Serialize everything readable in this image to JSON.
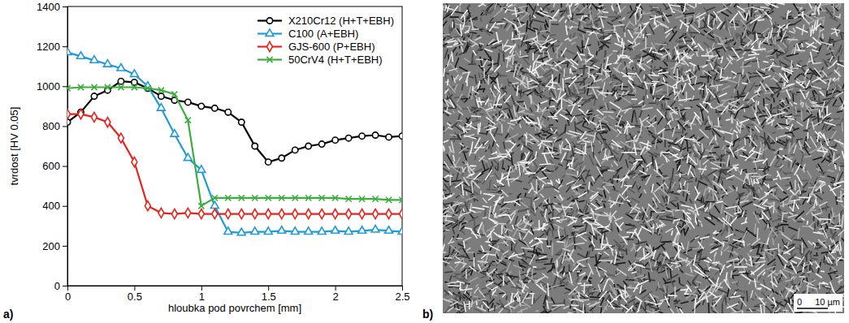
{
  "chart_data": {
    "type": "line",
    "x_label": "hloubka pod povrchem [mm]",
    "y_label": "tvrdost [HV 0.05]",
    "x": [
      0,
      0.1,
      0.2,
      0.3,
      0.4,
      0.5,
      0.6,
      0.7,
      0.8,
      0.9,
      1.0,
      1.1,
      1.2,
      1.3,
      1.4,
      1.5,
      1.6,
      1.7,
      1.8,
      1.9,
      2.0,
      2.1,
      2.2,
      2.3,
      2.4,
      2.5
    ],
    "series": [
      {
        "name": "X210Cr12 (H+T+EBH)",
        "color": "#000000",
        "marker": "circle",
        "line_style": "solid",
        "values": [
          820,
          870,
          950,
          980,
          1025,
          1020,
          990,
          950,
          930,
          920,
          900,
          890,
          870,
          820,
          700,
          620,
          640,
          680,
          700,
          710,
          730,
          740,
          750,
          755,
          745,
          750
        ]
      },
      {
        "name": "C100 (A+EBH)",
        "color": "#1f9bd7",
        "marker": "triangle",
        "line_style": "solid",
        "values": [
          1170,
          1150,
          1130,
          1110,
          1090,
          1060,
          1000,
          890,
          760,
          640,
          580,
          400,
          270,
          265,
          270,
          270,
          275,
          270,
          270,
          270,
          275,
          270,
          275,
          280,
          275,
          270
        ]
      },
      {
        "name": "GJS-600 (P+EBH)",
        "color": "#e8231e",
        "marker": "diamond",
        "line_style": "solid",
        "values": [
          860,
          860,
          845,
          820,
          740,
          620,
          400,
          365,
          360,
          365,
          360,
          360,
          360,
          360,
          360,
          360,
          360,
          360,
          360,
          360,
          360,
          360,
          360,
          360,
          360,
          360
        ]
      },
      {
        "name": "50CrV4 (H+T+EBH)",
        "color": "#3cae3c",
        "marker": "x",
        "line_style": "solid",
        "values": [
          990,
          995,
          995,
          995,
          995,
          995,
          990,
          980,
          960,
          830,
          400,
          440,
          440,
          440,
          440,
          440,
          440,
          440,
          440,
          440,
          440,
          435,
          435,
          435,
          430,
          430
        ]
      }
    ],
    "xlim": [
      0,
      2.5
    ],
    "xticks": [
      0,
      0.5,
      1,
      1.5,
      2,
      2.5
    ],
    "ylim": [
      0,
      1400
    ],
    "yticks": [
      0,
      200,
      400,
      600,
      800,
      1000,
      1200,
      1400
    ],
    "grid": false,
    "legend": "upper right"
  },
  "figure": {
    "panel_labels": [
      "a)",
      "b)"
    ],
    "scale_bar": [
      "0",
      "10 µm"
    ]
  }
}
